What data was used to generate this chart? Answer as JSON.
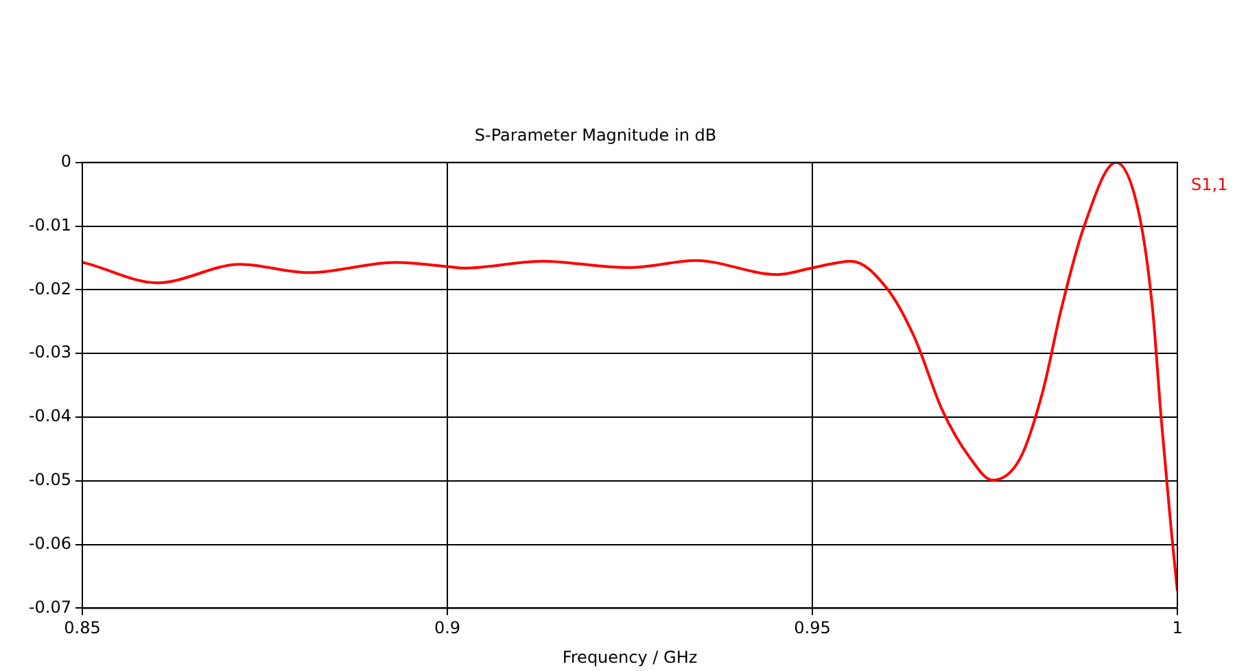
{
  "chart_data": {
    "type": "line",
    "title": "S-Parameter Magnitude in dB",
    "xlabel": "Frequency / GHz",
    "xlim": [
      0.85,
      1
    ],
    "xticks": [
      0.85,
      0.9,
      0.95,
      1
    ],
    "ylim": [
      -0.07,
      0
    ],
    "yticks": [
      -0.07,
      -0.06,
      -0.05,
      -0.04,
      -0.03,
      -0.02,
      -0.01,
      0
    ],
    "grid": true,
    "marker": "none",
    "line_style": "solid",
    "series": [
      {
        "name": "S1,1",
        "color": "#ff0000",
        "x": [
          0.85,
          0.8504,
          0.8603,
          0.8716,
          0.881,
          0.8929,
          0.9004,
          0.9023,
          0.913,
          0.9224,
          0.9252,
          0.934,
          0.9452,
          0.9502,
          0.9553,
          0.9603,
          0.964,
          0.9678,
          0.9716,
          0.9747,
          0.9785,
          0.9816,
          0.9841,
          0.9872,
          0.9916,
          0.9947,
          0.9966,
          0.9978,
          0.9991,
          1
        ],
        "values": [
          -0.0157,
          -0.0158,
          -0.0189,
          -0.016,
          -0.0173,
          -0.0157,
          -0.0164,
          -0.0166,
          -0.0155,
          -0.0164,
          -0.0165,
          -0.0154,
          -0.0176,
          -0.0165,
          -0.0155,
          -0.0199,
          -0.0275,
          -0.0389,
          -0.0464,
          -0.0499,
          -0.0464,
          -0.0358,
          -0.023,
          -0.0101,
          0,
          -0.0078,
          -0.023,
          -0.0404,
          -0.057,
          -0.0673
        ]
      }
    ]
  }
}
